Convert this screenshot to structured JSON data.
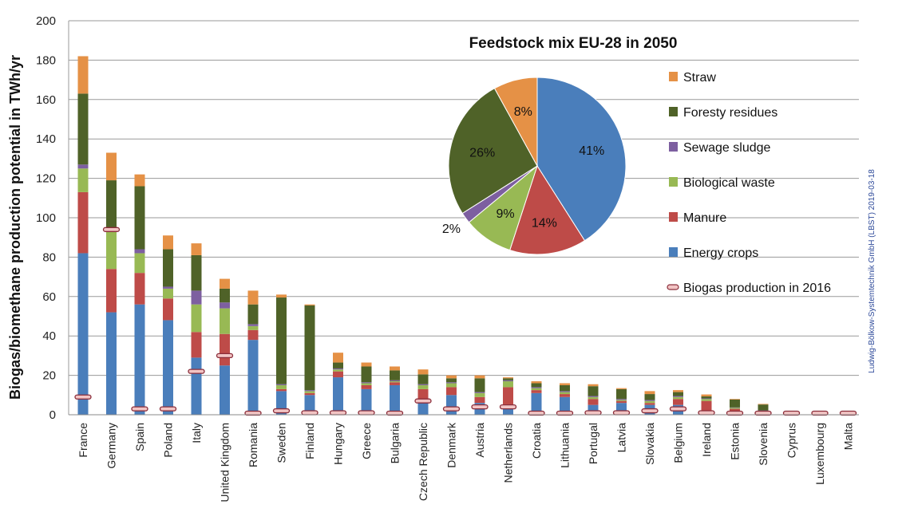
{
  "chart_data": [
    {
      "type": "bar",
      "stacked": true,
      "ylabel": "Biogas/biomethane production potential in TWh/yr",
      "ylim": [
        0,
        200
      ],
      "yticks": [
        "0",
        "20",
        "40",
        "60",
        "80",
        "100",
        "120",
        "140",
        "160",
        "180",
        "200"
      ],
      "grid": true,
      "legend_position": "right",
      "categories": [
        "France",
        "Germany",
        "Spain",
        "Poland",
        "Italy",
        "United Kingdom",
        "Romania",
        "Sweden",
        "Finland",
        "Hungary",
        "Greece",
        "Bulgaria",
        "Czech Republic",
        "Denmark",
        "Austria",
        "Netherlands",
        "Croatia",
        "Lithuania",
        "Portugal",
        "Latvia",
        "Slovakia",
        "Belgium",
        "Ireland",
        "Estonia",
        "Slovenia",
        "Cyprus",
        "Luxembourg",
        "Malta"
      ],
      "series": [
        {
          "name": "Energy crops",
          "color": "#4a7ebb",
          "values": [
            82,
            52,
            56,
            48,
            29,
            25,
            38,
            12,
            10,
            19,
            13,
            15,
            8,
            10,
            6,
            4,
            11,
            9,
            5,
            6,
            5,
            5,
            2,
            2,
            1,
            0.5,
            0.3,
            0.2
          ]
        },
        {
          "name": "Manure",
          "color": "#be4b48",
          "values": [
            31,
            22,
            16,
            11,
            13,
            16,
            5,
            1,
            1,
            3,
            2,
            1.5,
            5,
            4,
            3,
            10,
            1.5,
            1.5,
            3,
            1,
            1,
            3,
            5,
            1,
            0.5,
            0.3,
            0.2,
            0.2
          ]
        },
        {
          "name": "Biological waste",
          "color": "#98b954",
          "values": [
            12,
            19,
            10,
            5,
            14,
            13,
            2,
            2,
            1,
            1,
            1,
            0.5,
            2,
            2,
            2,
            3,
            1,
            1,
            1,
            0.5,
            1,
            1,
            1,
            0.5,
            0.5,
            0.2,
            0.2,
            0.1
          ]
        },
        {
          "name": "Sewage sludge",
          "color": "#7d5fa0",
          "values": [
            2,
            1,
            2,
            1,
            7,
            3,
            1,
            0.5,
            0.5,
            0.5,
            0.5,
            0.5,
            0.5,
            0.5,
            0.5,
            0.5,
            0.5,
            0.5,
            0.5,
            0.5,
            0.5,
            0.5,
            0.3,
            0.2,
            0.2,
            0.1,
            0.1,
            0.1
          ]
        },
        {
          "name": "Foresty residues",
          "color": "#4f6228",
          "values": [
            36,
            25,
            32,
            19,
            18,
            7,
            10,
            44,
            43,
            3,
            8,
            5,
            5,
            2,
            7,
            1,
            2,
            3,
            5,
            5,
            3,
            2,
            1,
            4,
            3,
            0,
            0,
            0
          ]
        },
        {
          "name": "Straw",
          "color": "#e59146",
          "values": [
            19,
            14,
            6,
            7,
            6,
            5,
            7,
            1.5,
            0.5,
            5,
            2,
            2,
            2.5,
            1.5,
            1.5,
            0.5,
            1,
            1,
            1,
            0.5,
            1.5,
            1,
            1,
            0.3,
            0.3,
            0,
            0,
            0
          ]
        }
      ],
      "markers": {
        "name": "Biogas production in 2016",
        "color": "#f2c4c4",
        "values": [
          9,
          94,
          3,
          3,
          22,
          30,
          0.5,
          2,
          1,
          1,
          1,
          0.5,
          7,
          3,
          4,
          4,
          0.5,
          0.5,
          1,
          1,
          2,
          3,
          1,
          0.3,
          0.5,
          0.3,
          0.3,
          0.3
        ]
      }
    },
    {
      "type": "pie",
      "title": "Feedstock mix EU-28 in 2050",
      "start": "top",
      "direction": "clockwise",
      "slices": [
        {
          "name": "Energy crops",
          "value": 41,
          "label": "41%",
          "color": "#4a7ebb"
        },
        {
          "name": "Manure",
          "value": 14,
          "label": "14%",
          "color": "#be4b48"
        },
        {
          "name": "Biological waste",
          "value": 9,
          "label": "9%",
          "color": "#98b954"
        },
        {
          "name": "Sewage sludge",
          "value": 2,
          "label": "2%",
          "color": "#7d5fa0"
        },
        {
          "name": "Foresty residues",
          "value": 26,
          "label": "26%",
          "color": "#4f6228"
        },
        {
          "name": "Straw",
          "value": 8,
          "label": "8%",
          "color": "#e59146"
        }
      ]
    }
  ],
  "legend": [
    {
      "label": "Straw",
      "color": "#e59146"
    },
    {
      "label": "Foresty residues",
      "color": "#4f6228"
    },
    {
      "label": "Sewage sludge",
      "color": "#7d5fa0"
    },
    {
      "label": "Biological waste",
      "color": "#98b954"
    },
    {
      "label": "Manure",
      "color": "#be4b48"
    },
    {
      "label": "Energy crops",
      "color": "#4a7ebb"
    },
    {
      "label": "Biogas production in 2016",
      "color": "#f2c4c4",
      "marker": true
    }
  ],
  "credit": "Ludwig-Bölkow-Systemtechnik GmbH (LBST)  2019-03-18"
}
